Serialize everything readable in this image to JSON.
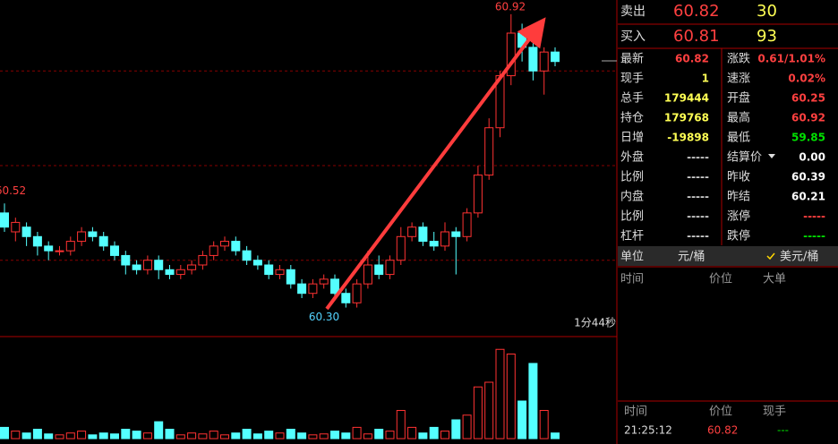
{
  "chart_data": {
    "type": "candlestick",
    "open": [
      60.5,
      60.46,
      60.47,
      60.45,
      60.43,
      60.42,
      60.42,
      60.44,
      60.46,
      60.45,
      60.43,
      60.41,
      60.39,
      60.38,
      60.4,
      60.38,
      60.37,
      60.38,
      60.39,
      60.41,
      60.43,
      60.44,
      60.42,
      60.4,
      60.39,
      60.37,
      60.38,
      60.35,
      60.33,
      60.35,
      60.36,
      60.33,
      60.31,
      60.35,
      60.39,
      60.37,
      60.4,
      60.45,
      60.47,
      60.44,
      60.43,
      60.46,
      60.45,
      60.5,
      60.58,
      60.68,
      60.79,
      60.88,
      60.85,
      60.8,
      60.84
    ],
    "high": [
      60.52,
      60.49,
      60.48,
      60.46,
      60.44,
      60.43,
      60.45,
      60.47,
      60.47,
      60.46,
      60.44,
      60.42,
      60.4,
      60.41,
      60.41,
      60.39,
      60.39,
      60.4,
      60.42,
      60.44,
      60.45,
      60.45,
      60.43,
      60.41,
      60.4,
      60.39,
      60.39,
      60.36,
      60.36,
      60.37,
      60.37,
      60.34,
      60.36,
      60.42,
      60.41,
      60.41,
      60.47,
      60.48,
      60.48,
      60.46,
      60.48,
      60.47,
      60.51,
      60.6,
      60.7,
      60.8,
      60.92,
      60.9,
      60.89,
      60.85,
      60.85
    ],
    "low": [
      60.46,
      60.44,
      60.43,
      60.41,
      60.4,
      60.41,
      60.41,
      60.43,
      60.44,
      60.42,
      60.4,
      60.37,
      60.37,
      60.37,
      60.36,
      60.36,
      60.36,
      60.37,
      60.38,
      60.4,
      60.42,
      60.41,
      60.39,
      60.38,
      60.36,
      60.36,
      60.34,
      60.32,
      60.32,
      60.34,
      60.32,
      60.3,
      60.3,
      60.34,
      60.36,
      60.36,
      60.39,
      60.44,
      60.43,
      60.42,
      60.42,
      60.37,
      60.44,
      60.49,
      60.57,
      60.66,
      60.77,
      60.82,
      60.78,
      60.75,
      60.81
    ],
    "close": [
      60.47,
      60.48,
      60.45,
      60.43,
      60.42,
      60.42,
      60.44,
      60.46,
      60.45,
      60.43,
      60.41,
      60.39,
      60.38,
      60.4,
      60.38,
      60.37,
      60.38,
      60.39,
      60.41,
      60.43,
      60.44,
      60.42,
      60.4,
      60.39,
      60.37,
      60.38,
      60.35,
      60.33,
      60.35,
      60.36,
      60.33,
      60.31,
      60.35,
      60.39,
      60.37,
      60.4,
      60.45,
      60.47,
      60.44,
      60.43,
      60.46,
      60.45,
      60.5,
      60.58,
      60.68,
      60.79,
      60.88,
      60.85,
      60.8,
      60.84,
      60.82
    ],
    "volume": [
      12,
      8,
      6,
      10,
      5,
      4,
      6,
      8,
      4,
      6,
      5,
      10,
      8,
      6,
      18,
      10,
      4,
      6,
      5,
      8,
      4,
      6,
      10,
      5,
      8,
      6,
      10,
      6,
      4,
      5,
      8,
      6,
      12,
      5,
      10,
      8,
      30,
      12,
      6,
      12,
      8,
      20,
      25,
      55,
      60,
      95,
      90,
      40,
      80,
      30,
      6
    ],
    "ylim": [
      60.25,
      60.95
    ],
    "volume_ylim": [
      0,
      100
    ],
    "grid_lines": [
      60.4,
      60.6,
      60.8
    ],
    "up_color": "#ff3232",
    "down_color": "#54ffff",
    "annotations": [
      {
        "value": 60.92,
        "label": "60.92"
      },
      {
        "value": 60.52,
        "label": "60.52"
      },
      {
        "value": 60.3,
        "label": "60.30"
      }
    ],
    "timer": "1分44秒"
  },
  "panel": {
    "quotes": [
      {
        "label": "卖出",
        "price": "60.82",
        "size": "30"
      },
      {
        "label": "买入",
        "price": "60.81",
        "size": "93"
      }
    ],
    "stats": [
      {
        "l1": "最新",
        "v1": "60.82",
        "c1": "#ff4040",
        "l2": "涨跌",
        "v2": "0.61/1.01%",
        "c2": "#ff4040"
      },
      {
        "l1": "现手",
        "v1": "1",
        "c1": "#ffff54",
        "l2": "速涨",
        "v2": "0.02%",
        "c2": "#ff4040"
      },
      {
        "l1": "总手",
        "v1": "179444",
        "c1": "#ffff54",
        "l2": "开盘",
        "v2": "60.25",
        "c2": "#ff4040"
      },
      {
        "l1": "持仓",
        "v1": "179768",
        "c1": "#ffff54",
        "l2": "最高",
        "v2": "60.92",
        "c2": "#ff4040"
      },
      {
        "l1": "日增",
        "v1": "-19898",
        "c1": "#ffff54",
        "l2": "最低",
        "v2": "59.85",
        "c2": "#00e000"
      },
      {
        "l1": "外盘",
        "v1": "-----",
        "c1": "#cccccc",
        "l2": "结算价",
        "v2": "0.00",
        "c2": "#ffffff"
      },
      {
        "l1": "比例",
        "v1": "-----",
        "c1": "#cccccc",
        "l2": "昨收",
        "v2": "60.39",
        "c2": "#ffffff"
      },
      {
        "l1": "内盘",
        "v1": "-----",
        "c1": "#cccccc",
        "l2": "昨结",
        "v2": "60.21",
        "c2": "#ffffff"
      },
      {
        "l1": "比例",
        "v1": "-----",
        "c1": "#cccccc",
        "l2": "涨停",
        "v2": "-----",
        "c2": "#ff4040"
      },
      {
        "l1": "杠杆",
        "v1": "-----",
        "c1": "#cccccc",
        "l2": "跌停",
        "v2": "-----",
        "c2": "#00e000"
      }
    ],
    "unit": {
      "label": "单位",
      "opt1": "元/桶",
      "opt2": "美元/桶"
    },
    "big_header": [
      "时间",
      "价位",
      "大单"
    ],
    "trade_header": [
      "时间",
      "价位",
      "现手"
    ],
    "trade": [
      "21:25:12",
      "60.82",
      "---"
    ]
  }
}
